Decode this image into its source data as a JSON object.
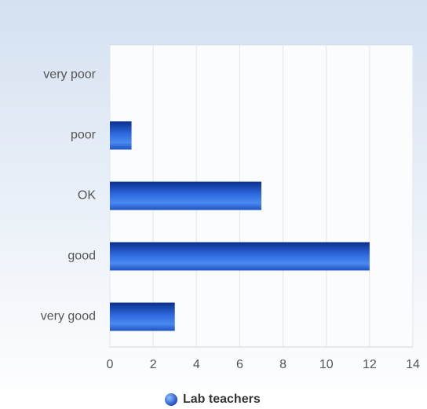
{
  "chart_data": {
    "type": "hbar",
    "categories": [
      "very poor",
      "poor",
      "OK",
      "good",
      "very good"
    ],
    "series": [
      {
        "name": "Lab teachers",
        "color": "#2a63d6",
        "values": [
          0,
          1,
          7,
          12,
          3
        ]
      }
    ],
    "xlim": [
      0,
      14
    ],
    "xticks": [
      0,
      2,
      4,
      6,
      8,
      10,
      12,
      14
    ],
    "grid": true,
    "legend": "bottom"
  }
}
